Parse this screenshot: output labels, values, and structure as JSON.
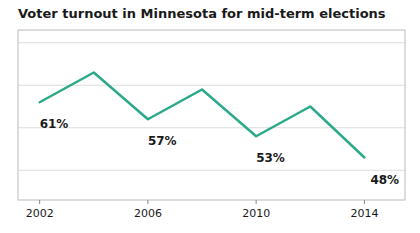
{
  "chart_data": {
    "type": "line",
    "title": "Voter turnout in Minnesota for mid-term elections",
    "x": [
      2002,
      2004,
      2006,
      2008,
      2010,
      2012,
      2014
    ],
    "values": [
      61,
      68,
      57,
      64,
      53,
      60,
      48
    ],
    "value_labels": [
      "61%",
      null,
      "57%",
      null,
      "53%",
      null,
      "48%"
    ],
    "data_labels": true,
    "color": "#2aaa8a",
    "xlim": [
      2001.2,
      2015.5
    ],
    "xticks": [
      2002,
      2006,
      2010,
      2014
    ],
    "ylim": [
      38,
      78
    ],
    "yticks": [
      45,
      55,
      65,
      75
    ],
    "grid": true,
    "tick_labels": "x"
  }
}
